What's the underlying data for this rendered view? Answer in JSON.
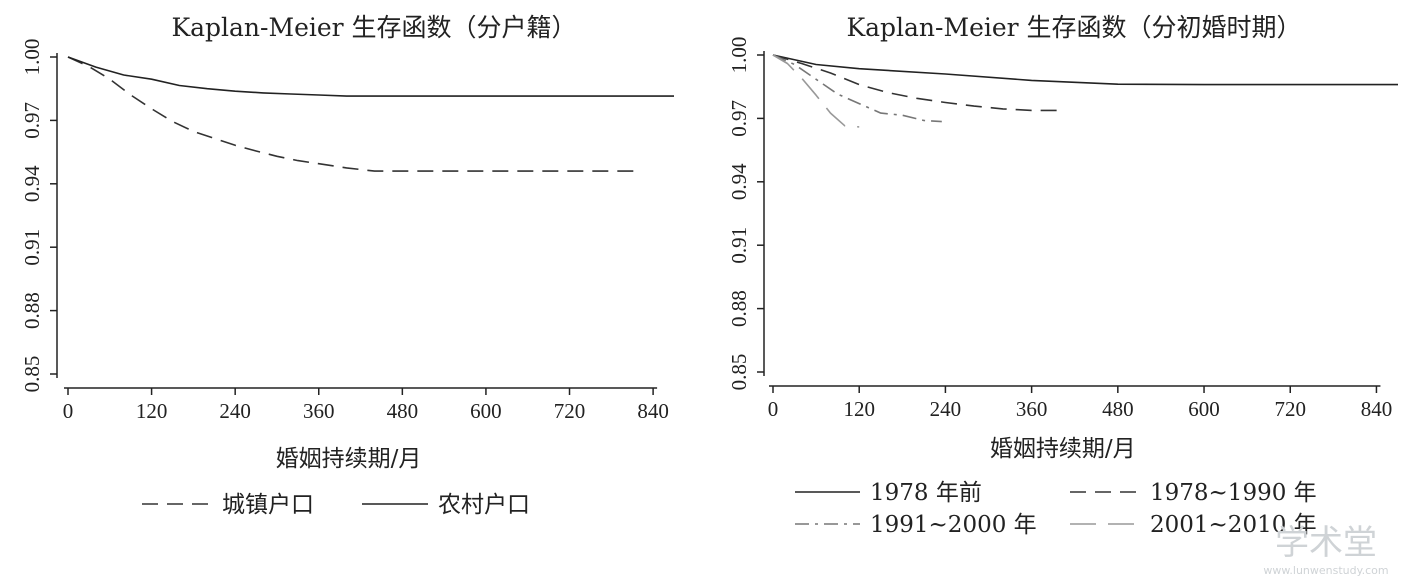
{
  "chart_data": [
    {
      "type": "line",
      "title": "Kaplan-Meier 生存函数（分户籍）",
      "xlabel": "婚姻持续期/月",
      "ylabel": "",
      "xlim": [
        0,
        870
      ],
      "ylim": [
        0.85,
        1.0
      ],
      "xticks": [
        "0",
        "120",
        "240",
        "360",
        "480",
        "600",
        "720",
        "840"
      ],
      "yticks": [
        "0.85",
        "0.88",
        "0.91",
        "0.94",
        "0.97",
        "1.00"
      ],
      "grid": false,
      "legend_position": "bottom",
      "series": [
        {
          "name": "城镇户口",
          "style": "dashed",
          "color": "#333333",
          "x": [
            0,
            30,
            60,
            90,
            120,
            150,
            180,
            210,
            240,
            270,
            300,
            330,
            360,
            400,
            440,
            480,
            600,
            720,
            820
          ],
          "y": [
            1.0,
            0.9955,
            0.9895,
            0.982,
            0.9755,
            0.9695,
            0.9648,
            0.9615,
            0.9582,
            0.9555,
            0.953,
            0.951,
            0.9495,
            0.9475,
            0.946,
            0.946,
            0.946,
            0.946,
            0.946
          ]
        },
        {
          "name": "农村户口",
          "style": "solid",
          "color": "#222222",
          "x": [
            0,
            40,
            80,
            120,
            160,
            200,
            240,
            280,
            320,
            360,
            400,
            480,
            600,
            720,
            870
          ],
          "y": [
            1.0,
            0.9952,
            0.9915,
            0.9895,
            0.9865,
            0.985,
            0.9838,
            0.983,
            0.9825,
            0.982,
            0.9815,
            0.9815,
            0.9815,
            0.9815,
            0.9815
          ]
        }
      ]
    },
    {
      "type": "line",
      "title": "Kaplan-Meier 生存函数（分初婚时期）",
      "xlabel": "婚姻持续期/月",
      "ylabel": "",
      "xlim": [
        0,
        870
      ],
      "ylim": [
        0.85,
        1.0
      ],
      "xticks": [
        "0",
        "120",
        "240",
        "360",
        "480",
        "600",
        "720",
        "840"
      ],
      "yticks": [
        "0.85",
        "0.88",
        "0.91",
        "0.94",
        "0.97",
        "1.00"
      ],
      "grid": false,
      "legend_position": "bottom",
      "series": [
        {
          "name": "1978 年前",
          "style": "solid",
          "color": "#222222",
          "x": [
            0,
            60,
            120,
            240,
            360,
            480,
            600,
            720,
            870
          ],
          "y": [
            1.0,
            0.9955,
            0.9935,
            0.991,
            0.988,
            0.9862,
            0.986,
            0.986,
            0.986
          ]
        },
        {
          "name": "1978~1990 年",
          "style": "dashed",
          "color": "#333333",
          "x": [
            0,
            40,
            80,
            120,
            160,
            200,
            240,
            280,
            320,
            360,
            395
          ],
          "y": [
            1.0,
            0.996,
            0.9915,
            0.986,
            0.9822,
            0.9795,
            0.9775,
            0.9758,
            0.9745,
            0.9738,
            0.9738
          ]
        },
        {
          "name": "1991~2000 年",
          "style": "dashdot",
          "color": "#777777",
          "x": [
            0,
            30,
            60,
            90,
            120,
            150,
            180,
            210,
            235
          ],
          "y": [
            1.0,
            0.9955,
            0.9885,
            0.9815,
            0.977,
            0.9725,
            0.9715,
            0.969,
            0.9685
          ]
        },
        {
          "name": "2001~2010 年",
          "style": "longdash",
          "color": "#999999",
          "x": [
            0,
            20,
            40,
            60,
            80,
            100,
            120
          ],
          "y": [
            1.0,
            0.996,
            0.989,
            0.981,
            0.9725,
            0.9665,
            0.966
          ]
        }
      ]
    }
  ],
  "watermark": {
    "main": "学术堂",
    "sub": "www.lunwenstudy.com"
  }
}
